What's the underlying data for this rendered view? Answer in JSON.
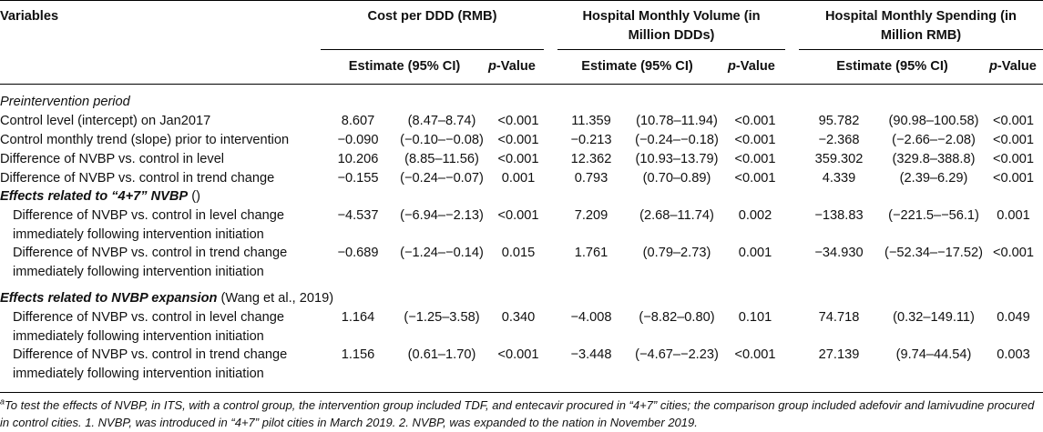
{
  "header": {
    "variables": "Variables",
    "groups": [
      {
        "title": "Cost per DDD (RMB)"
      },
      {
        "title_line1": "Hospital Monthly Volume (in",
        "title_line2": "Million DDDs)"
      },
      {
        "title_line1": "Hospital Monthly Spending (in",
        "title_line2": "Million RMB)"
      }
    ],
    "estimate": "Estimate (95% CI)",
    "p_italic": "p",
    "p_rest": "-Value"
  },
  "sections": {
    "pre": "Preintervention period",
    "nvbp_head_bold": "Effects related to “4+7” NVBP",
    "nvbp_head_rest": " ()",
    "exp_head_bold": "Effects related to NVBP expansion",
    "exp_head_rest": " (Wang et al., 2019)"
  },
  "rows": [
    {
      "label": "Control level (intercept) on Jan2017",
      "v": [
        "8.607",
        "(8.47–8.74)",
        "<0.001",
        "11.359",
        "(10.78–11.94)",
        "<0.001",
        "95.782",
        "(90.98–100.58)",
        "<0.001"
      ]
    },
    {
      "label": "Control monthly trend (slope) prior to intervention",
      "v": [
        "−0.090",
        "(−0.10–−0.08)",
        "<0.001",
        "−0.213",
        "(−0.24–−0.18)",
        "<0.001",
        "−2.368",
        "(−2.66–−2.08)",
        "<0.001"
      ]
    },
    {
      "label": "Difference of NVBP vs. control in level",
      "v": [
        "10.206",
        "(8.85–11.56)",
        "<0.001",
        "12.362",
        "(10.93–13.79)",
        "<0.001",
        "359.302",
        "(329.8–388.8)",
        "<0.001"
      ]
    },
    {
      "label": "Difference of NVBP vs. control in trend change",
      "v": [
        "−0.155",
        "(−0.24–−0.07)",
        "0.001",
        "0.793",
        "(0.70–0.89)",
        "<0.001",
        "4.339",
        "(2.39–6.29)",
        "<0.001"
      ]
    },
    {
      "label1": "Difference of NVBP vs. control in level change",
      "label2": "immediately following intervention initiation",
      "v": [
        "−4.537",
        "(−6.94–−2.13)",
        "<0.001",
        "7.209",
        "(2.68–11.74)",
        "0.002",
        "−138.83",
        "(−221.5–−56.1)",
        "0.001"
      ]
    },
    {
      "label1": "Difference of NVBP vs. control in trend change",
      "label2": "immediately following intervention initiation",
      "v": [
        "−0.689",
        "(−1.24–−0.14)",
        "0.015",
        "1.761",
        "(0.79–2.73)",
        "0.001",
        "−34.930",
        "(−52.34–−17.52)",
        "<0.001"
      ]
    },
    {
      "label1": "Difference of NVBP vs. control in level change",
      "label2": "immediately following intervention initiation",
      "v": [
        "1.164",
        "(−1.25–3.58)",
        "0.340",
        "−4.008",
        "(−8.82–0.80)",
        "0.101",
        "74.718",
        "(0.32–149.11)",
        "0.049"
      ]
    },
    {
      "label1": "Difference of NVBP vs. control in trend change",
      "label2": "immediately following intervention initiation",
      "v": [
        "1.156",
        "(0.61–1.70)",
        "<0.001",
        "−3.448",
        "(−4.67–−2.23)",
        "<0.001",
        "27.139",
        "(9.74–44.54)",
        "0.003"
      ]
    }
  ],
  "footnote": {
    "sup": "a",
    "text": "To test the effects of NVBP, in ITS, with a control group, the intervention group included TDF, and entecavir procured in “4+7” cities; the comparison group included adefovir and lamivudine procured in control cities. 1. NVBP, was introduced in “4+7” pilot cities in March 2019. 2. NVBP, was expanded to the nation in November 2019."
  }
}
